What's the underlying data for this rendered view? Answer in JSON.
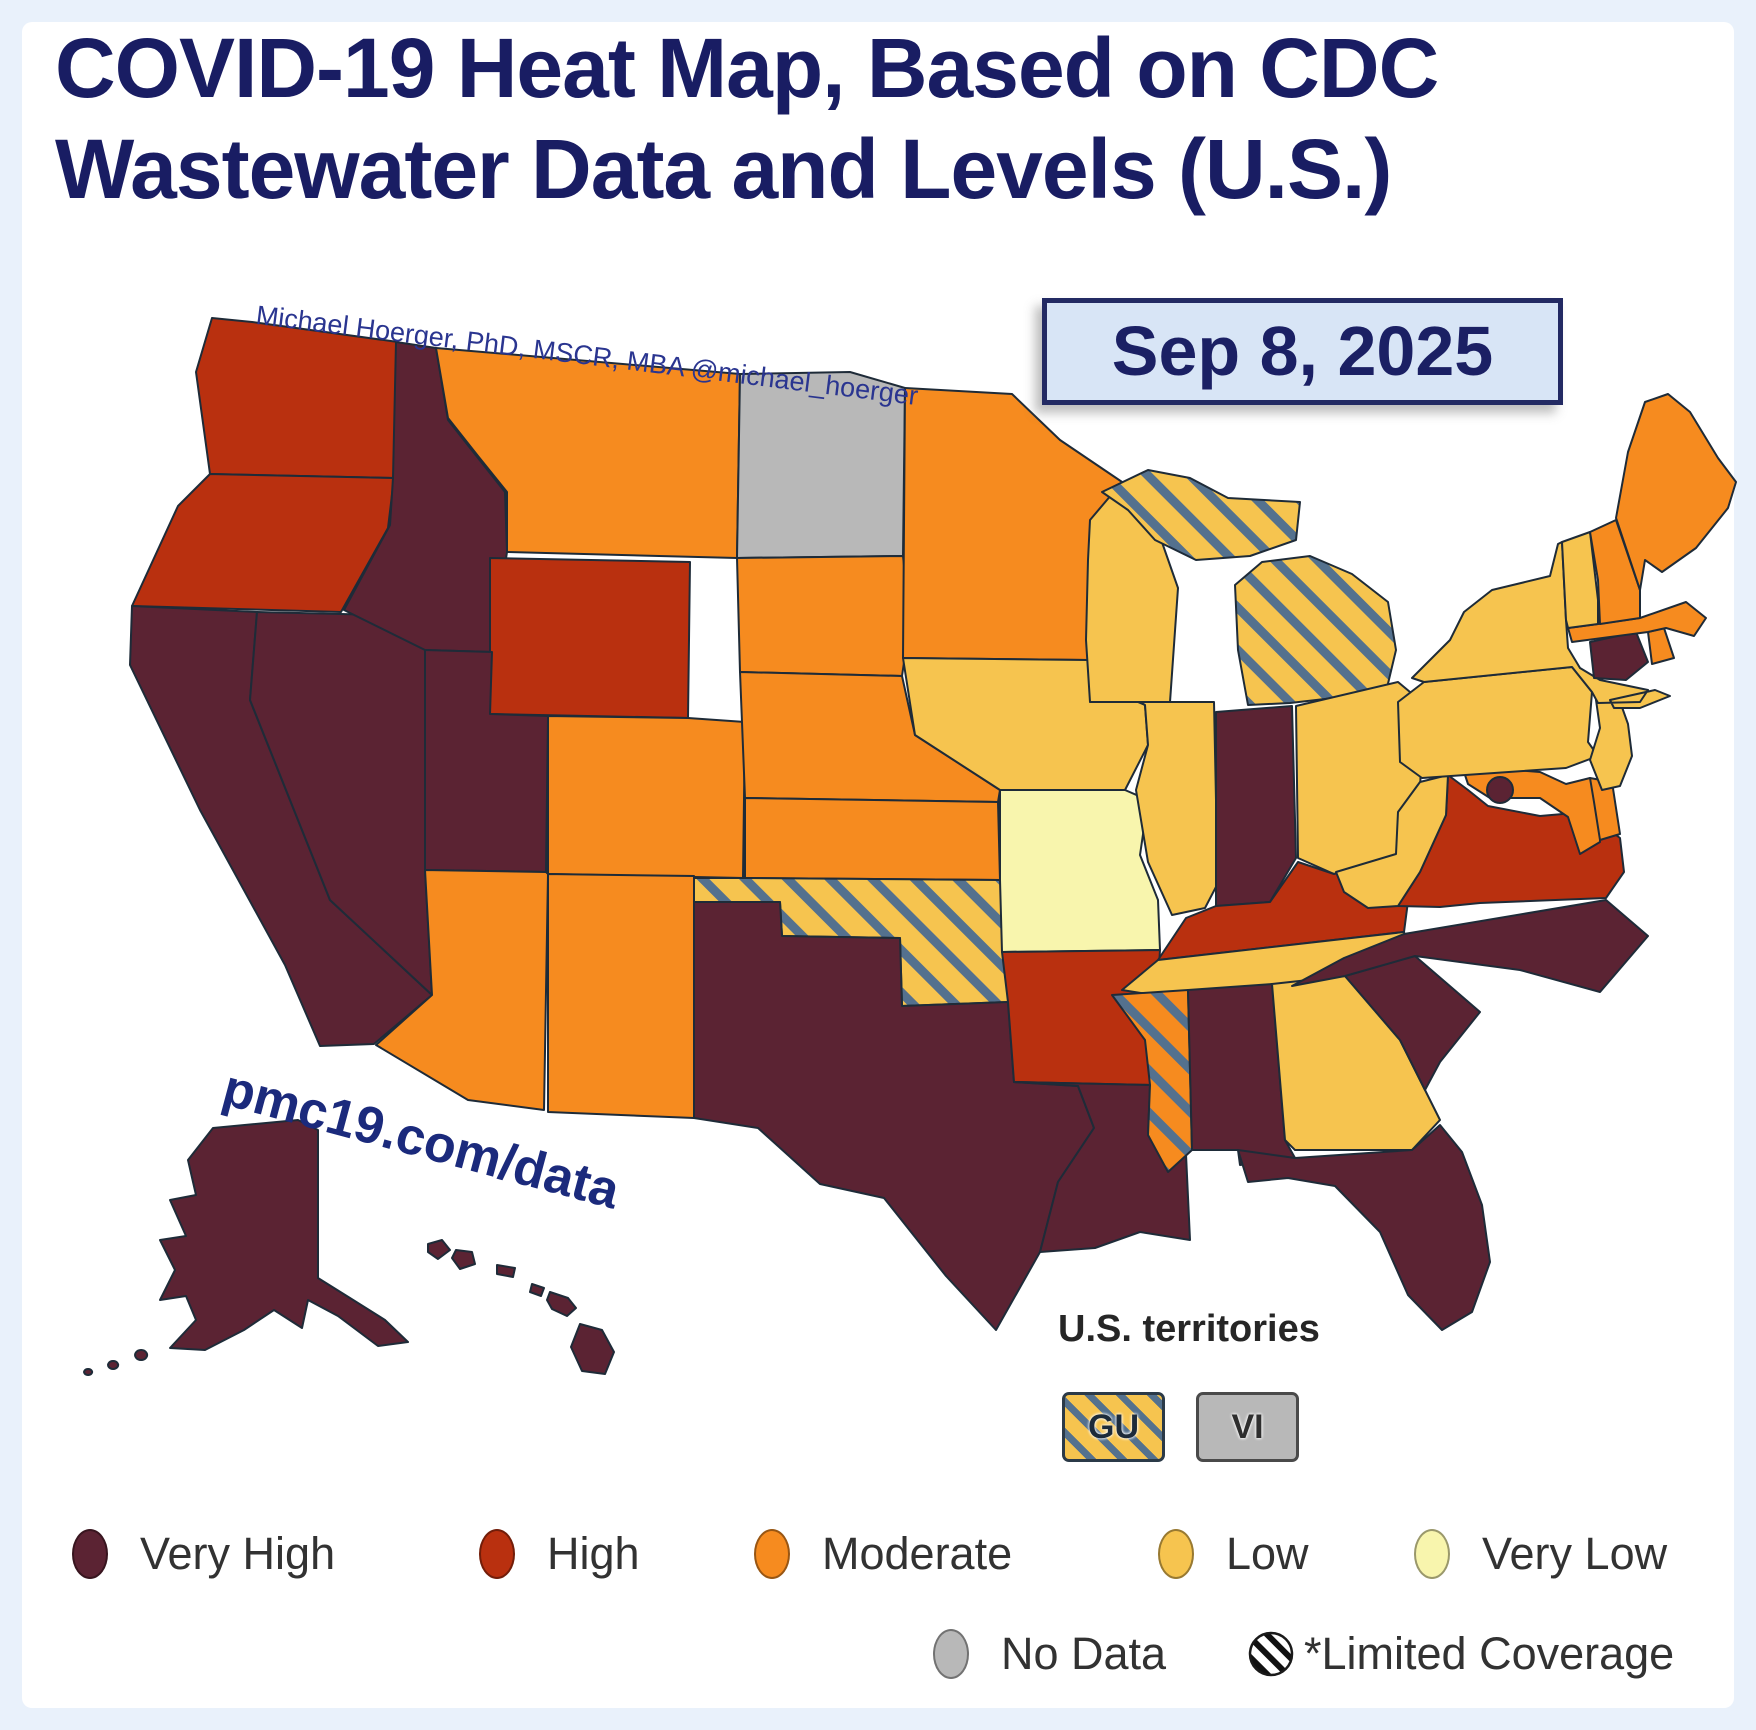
{
  "page": {
    "background": "#e9f1fb",
    "card_background": "#ffffff"
  },
  "title": {
    "line1": "COVID-19 Heat Map, Based on CDC",
    "line2": "Wastewater Data and Levels (U.S.)"
  },
  "date_badge": {
    "text": "Sep 8, 2025"
  },
  "attribution": {
    "text": "Michael Hoerger, PhD, MSCR, MBA  @michael_hoerger"
  },
  "watermark": {
    "text": "pmc19.com/data"
  },
  "territories": {
    "heading": "U.S. territories",
    "items": [
      {
        "code": "GU",
        "name": "Guam",
        "level": "low",
        "limited_coverage": true
      },
      {
        "code": "VI",
        "name": "U.S. Virgin Islands",
        "level": "no_data",
        "limited_coverage": false
      }
    ]
  },
  "legend": {
    "row1": [
      {
        "key": "very_high",
        "label": "Very High"
      },
      {
        "key": "high",
        "label": "High"
      },
      {
        "key": "moderate",
        "label": "Moderate"
      },
      {
        "key": "low",
        "label": "Low"
      },
      {
        "key": "very_low",
        "label": "Very Low"
      }
    ],
    "row2": [
      {
        "key": "no_data",
        "label": "No Data"
      },
      {
        "key": "limited_coverage",
        "label": "*Limited Coverage"
      }
    ]
  },
  "colors": {
    "very_high": "#5b2333",
    "high": "#b9300f",
    "moderate": "#f68b1f",
    "low": "#f6c44f",
    "very_low": "#f8f5ad",
    "no_data": "#b8b8b8",
    "hatch_stripe": "#54718e",
    "state_border": "#1e2b38",
    "title_navy": "#191d63"
  },
  "map_data": {
    "type": "choropleth",
    "region": "United States",
    "metric": "COVID-19 wastewater viral activity level",
    "date": "Sep 8, 2025",
    "levels_order": [
      "very_high",
      "high",
      "moderate",
      "low",
      "very_low",
      "no_data"
    ],
    "states": [
      {
        "abbr": "WA",
        "name": "Washington",
        "level": "high"
      },
      {
        "abbr": "OR",
        "name": "Oregon",
        "level": "high"
      },
      {
        "abbr": "CA",
        "name": "California",
        "level": "very_high"
      },
      {
        "abbr": "NV",
        "name": "Nevada",
        "level": "very_high"
      },
      {
        "abbr": "ID",
        "name": "Idaho",
        "level": "very_high"
      },
      {
        "abbr": "MT",
        "name": "Montana",
        "level": "moderate"
      },
      {
        "abbr": "WY",
        "name": "Wyoming",
        "level": "high"
      },
      {
        "abbr": "UT",
        "name": "Utah",
        "level": "very_high"
      },
      {
        "abbr": "AZ",
        "name": "Arizona",
        "level": "moderate"
      },
      {
        "abbr": "CO",
        "name": "Colorado",
        "level": "moderate"
      },
      {
        "abbr": "NM",
        "name": "New Mexico",
        "level": "moderate"
      },
      {
        "abbr": "ND",
        "name": "North Dakota",
        "level": "no_data"
      },
      {
        "abbr": "SD",
        "name": "South Dakota",
        "level": "moderate"
      },
      {
        "abbr": "NE",
        "name": "Nebraska",
        "level": "moderate"
      },
      {
        "abbr": "KS",
        "name": "Kansas",
        "level": "moderate"
      },
      {
        "abbr": "OK",
        "name": "Oklahoma",
        "level": "low",
        "limited_coverage": true
      },
      {
        "abbr": "TX",
        "name": "Texas",
        "level": "very_high"
      },
      {
        "abbr": "MN",
        "name": "Minnesota",
        "level": "moderate"
      },
      {
        "abbr": "IA",
        "name": "Iowa",
        "level": "low"
      },
      {
        "abbr": "MO",
        "name": "Missouri",
        "level": "very_low"
      },
      {
        "abbr": "AR",
        "name": "Arkansas",
        "level": "high"
      },
      {
        "abbr": "LA",
        "name": "Louisiana",
        "level": "very_high"
      },
      {
        "abbr": "WI",
        "name": "Wisconsin",
        "level": "low"
      },
      {
        "abbr": "IL",
        "name": "Illinois",
        "level": "low"
      },
      {
        "abbr": "MI",
        "name": "Michigan",
        "level": "low",
        "limited_coverage": true
      },
      {
        "abbr": "IN",
        "name": "Indiana",
        "level": "very_high"
      },
      {
        "abbr": "OH",
        "name": "Ohio",
        "level": "low"
      },
      {
        "abbr": "KY",
        "name": "Kentucky",
        "level": "high"
      },
      {
        "abbr": "TN",
        "name": "Tennessee",
        "level": "low"
      },
      {
        "abbr": "MS",
        "name": "Mississippi",
        "level": "moderate",
        "limited_coverage": true
      },
      {
        "abbr": "AL",
        "name": "Alabama",
        "level": "very_high"
      },
      {
        "abbr": "GA",
        "name": "Georgia",
        "level": "low"
      },
      {
        "abbr": "FL",
        "name": "Florida",
        "level": "very_high"
      },
      {
        "abbr": "SC",
        "name": "South Carolina",
        "level": "very_high"
      },
      {
        "abbr": "NC",
        "name": "North Carolina",
        "level": "very_high"
      },
      {
        "abbr": "VA",
        "name": "Virginia",
        "level": "high"
      },
      {
        "abbr": "WV",
        "name": "West Virginia",
        "level": "low"
      },
      {
        "abbr": "MD",
        "name": "Maryland",
        "level": "moderate"
      },
      {
        "abbr": "DE",
        "name": "Delaware",
        "level": "moderate"
      },
      {
        "abbr": "PA",
        "name": "Pennsylvania",
        "level": "low"
      },
      {
        "abbr": "NJ",
        "name": "New Jersey",
        "level": "low"
      },
      {
        "abbr": "NY",
        "name": "New York",
        "level": "low"
      },
      {
        "abbr": "CT",
        "name": "Connecticut",
        "level": "very_high"
      },
      {
        "abbr": "RI",
        "name": "Rhode Island",
        "level": "moderate"
      },
      {
        "abbr": "MA",
        "name": "Massachusetts",
        "level": "moderate"
      },
      {
        "abbr": "VT",
        "name": "Vermont",
        "level": "low"
      },
      {
        "abbr": "NH",
        "name": "New Hampshire",
        "level": "moderate"
      },
      {
        "abbr": "ME",
        "name": "Maine",
        "level": "moderate"
      },
      {
        "abbr": "AK",
        "name": "Alaska",
        "level": "very_high"
      },
      {
        "abbr": "HI",
        "name": "Hawaii",
        "level": "very_high"
      },
      {
        "abbr": "DC",
        "name": "District of Columbia",
        "level": "very_high"
      }
    ]
  }
}
